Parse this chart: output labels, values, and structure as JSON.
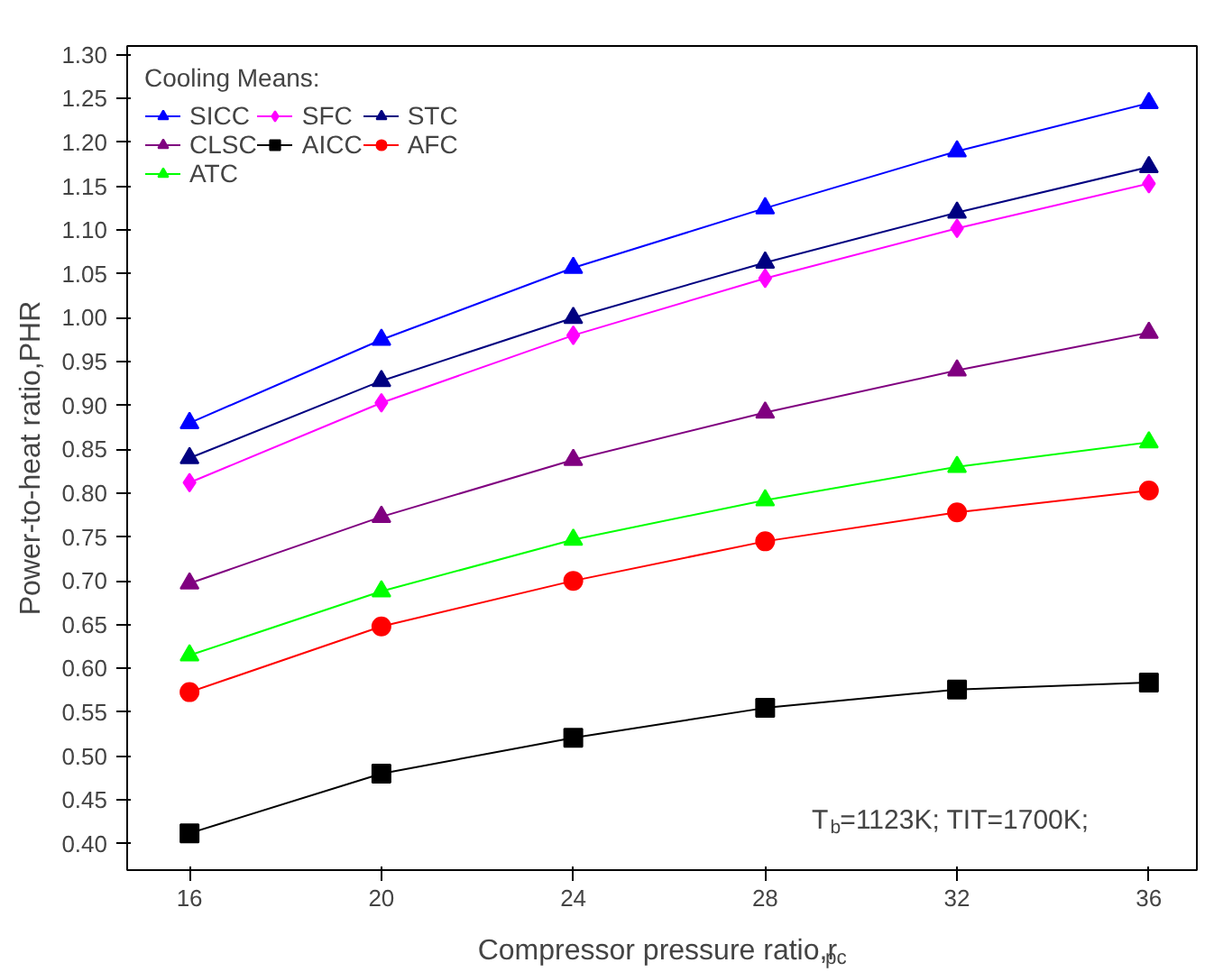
{
  "chart_data": {
    "type": "line",
    "xlabel": "Compressor pressure ratio,r$_{pc}$",
    "ylabel": "Power-to-heat ratio,PHR",
    "legend_title": "Cooling Means:",
    "x": [
      16,
      20,
      24,
      28,
      32,
      36
    ],
    "xlim": [
      14.7,
      37
    ],
    "xticks": [
      16,
      20,
      24,
      28,
      32,
      36
    ],
    "ylim": [
      0.37,
      1.31
    ],
    "yticks": [
      {
        "value": 0.4,
        "label": "0.40"
      },
      {
        "value": 0.45,
        "label": "0.45"
      },
      {
        "value": 0.5,
        "label": "0.50"
      },
      {
        "value": 0.55,
        "label": "0.55"
      },
      {
        "value": 0.6,
        "label": "0.60"
      },
      {
        "value": 0.65,
        "label": "0.65"
      },
      {
        "value": 0.7,
        "label": "0.70"
      },
      {
        "value": 0.75,
        "label": "0.75"
      },
      {
        "value": 0.8,
        "label": "0.80"
      },
      {
        "value": 0.85,
        "label": "0.85"
      },
      {
        "value": 0.9,
        "label": "0.90"
      },
      {
        "value": 0.95,
        "label": "0.95"
      },
      {
        "value": 1.0,
        "label": "1.00"
      },
      {
        "value": 1.05,
        "label": "1.05"
      },
      {
        "value": 1.1,
        "label": "1.10"
      },
      {
        "value": 1.15,
        "label": "1.15"
      },
      {
        "value": 1.2,
        "label": "1.20"
      },
      {
        "value": 1.25,
        "label": "1.25"
      },
      {
        "value": 1.3,
        "label": "1.30"
      }
    ],
    "grid": false,
    "legend": "top left",
    "line_style": "solid",
    "annotations": [
      "T$_{b}$=1123K; TIT=1700K;"
    ],
    "series": [
      {
        "name": "SICC",
        "color": "#0000ff",
        "marker": "triangle",
        "values": [
          0.88,
          0.975,
          1.057,
          1.125,
          1.19,
          1.245
        ]
      },
      {
        "name": "SFC",
        "color": "#ff00ff",
        "marker": "diamond",
        "values": [
          0.812,
          0.903,
          0.98,
          1.045,
          1.102,
          1.153
        ]
      },
      {
        "name": "STC",
        "color": "#000080",
        "marker": "triangle",
        "values": [
          0.84,
          0.928,
          1.0,
          1.063,
          1.12,
          1.172
        ]
      },
      {
        "name": "CLSC",
        "color": "#800080",
        "marker": "triangle",
        "values": [
          0.697,
          0.773,
          0.838,
          0.892,
          0.94,
          0.983
        ]
      },
      {
        "name": "AICC",
        "color": "#000000",
        "marker": "square",
        "values": [
          0.412,
          0.48,
          0.521,
          0.555,
          0.576,
          0.584
        ]
      },
      {
        "name": "AFC",
        "color": "#ff0000",
        "marker": "circle",
        "values": [
          0.573,
          0.648,
          0.7,
          0.745,
          0.778,
          0.803
        ]
      },
      {
        "name": "ATC",
        "color": "#00ff00",
        "marker": "triangle",
        "values": [
          0.615,
          0.688,
          0.747,
          0.792,
          0.83,
          0.858
        ]
      }
    ]
  }
}
